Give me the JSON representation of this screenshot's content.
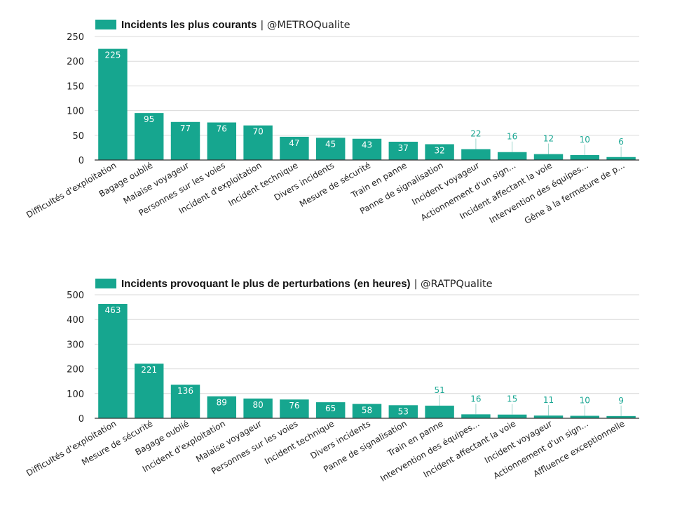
{
  "colors": {
    "bar": "#16a68f",
    "grid": "#d9d9d9",
    "axis": "#333333",
    "label_out": "#1aa793"
  },
  "chart_data": [
    {
      "type": "bar",
      "title_bold": "Incidents les plus courants",
      "title_rest": "| @METROQualite",
      "legend_position": "top-left",
      "ylim": [
        0,
        250
      ],
      "yticks": [
        0,
        50,
        100,
        150,
        200,
        250
      ],
      "grid": true,
      "categories": [
        "Difficultés d'exploitation",
        "Bagage oublié",
        "Malaise voyageur",
        "Personnes sur les voies",
        "Incident d'exploitation",
        "Incident technique",
        "Divers incidents",
        "Mesure de sécurité",
        "Train en panne",
        "Panne de signalisation",
        "Incident voyageur",
        "Actionnement d'un sign...",
        "Incident affectant la voie",
        "Intervention des équipes...",
        "Gêne à la fermeture de p..."
      ],
      "values": [
        225,
        95,
        77,
        76,
        70,
        47,
        45,
        43,
        37,
        32,
        22,
        16,
        12,
        10,
        6
      ]
    },
    {
      "type": "bar",
      "title_bold": "Incidents provoquant le plus de perturbations",
      "title_bold2": "(en heures)",
      "title_rest": "| @RATPQualite",
      "legend_position": "top-left",
      "ylim": [
        0,
        500
      ],
      "yticks": [
        0,
        100,
        200,
        300,
        400,
        500
      ],
      "grid": true,
      "categories": [
        "Difficultés d'exploitation",
        "Mesure de sécurité",
        "Bagage oublié",
        "Incident d'exploitation",
        "Malaise voyageur",
        "Personnes sur les voies",
        "Incident technique",
        "Divers incidents",
        "Panne de signalisation",
        "Train en panne",
        "Intervention des équipes...",
        "Incident affectant la voie",
        "Incident voyageur",
        "Actionnement d'un sign...",
        "Affluence exceptionnelle"
      ],
      "values": [
        463,
        221,
        136,
        89,
        80,
        76,
        65,
        58,
        53,
        51,
        16,
        15,
        11,
        10,
        9
      ]
    }
  ]
}
